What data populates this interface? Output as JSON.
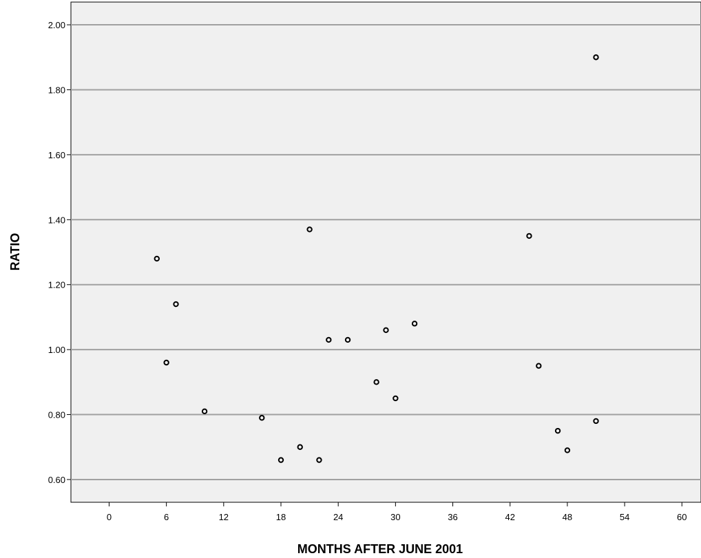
{
  "chart_data": {
    "type": "scatter",
    "title": "",
    "xlabel": "MONTHS AFTER JUNE 2001",
    "ylabel": "RATIO",
    "xlim": [
      -4,
      62
    ],
    "ylim": [
      0.53,
      2.07
    ],
    "x_ticks": [
      0,
      6,
      12,
      18,
      24,
      30,
      36,
      42,
      48,
      54,
      60
    ],
    "x_tick_labels": [
      "0",
      "6",
      "12",
      "18",
      "24",
      "30",
      "36",
      "42",
      "48",
      "54",
      "60"
    ],
    "y_ticks": [
      0.6,
      0.8,
      1.0,
      1.2,
      1.4,
      1.6,
      1.8,
      2.0
    ],
    "y_tick_labels": [
      "0.60",
      "0.80",
      "1.00",
      "1.20",
      "1.40",
      "1.60",
      "1.80",
      "2.00"
    ],
    "grid": "horizontal",
    "legend": "none",
    "colors": {
      "plot_background": "#f0f0f0",
      "gridline": "#a0a0a0",
      "marker": "#000000"
    },
    "series": [
      {
        "points": [
          {
            "x": 5,
            "y": 1.28
          },
          {
            "x": 6,
            "y": 0.96
          },
          {
            "x": 7,
            "y": 1.14
          },
          {
            "x": 10,
            "y": 0.81
          },
          {
            "x": 16,
            "y": 0.79
          },
          {
            "x": 18,
            "y": 0.66
          },
          {
            "x": 20,
            "y": 0.7
          },
          {
            "x": 21,
            "y": 1.37
          },
          {
            "x": 22,
            "y": 0.66
          },
          {
            "x": 23,
            "y": 1.03
          },
          {
            "x": 25,
            "y": 1.03
          },
          {
            "x": 28,
            "y": 0.9
          },
          {
            "x": 29,
            "y": 1.06
          },
          {
            "x": 30,
            "y": 0.85
          },
          {
            "x": 32,
            "y": 1.08
          },
          {
            "x": 44,
            "y": 1.35
          },
          {
            "x": 45,
            "y": 0.95
          },
          {
            "x": 47,
            "y": 0.75
          },
          {
            "x": 48,
            "y": 0.69
          },
          {
            "x": 51,
            "y": 1.9
          },
          {
            "x": 51,
            "y": 0.78
          }
        ]
      }
    ]
  }
}
